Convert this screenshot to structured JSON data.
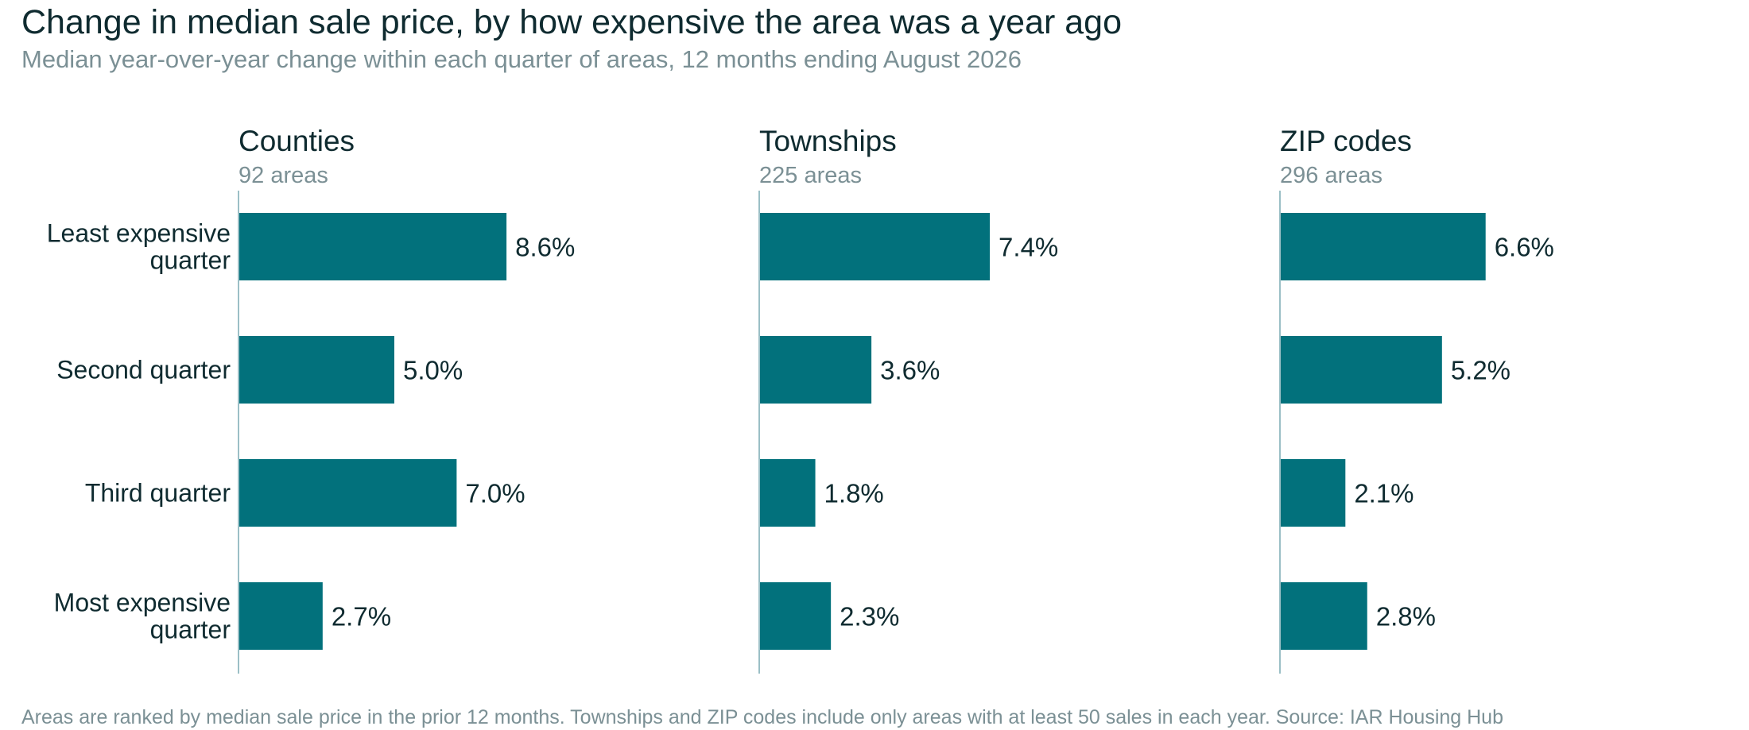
{
  "title": "Change in median sale price, by how expensive the area was a year ago",
  "subtitle": "Median year-over-year change within each quarter of areas, 12 months ending August 2026",
  "footnote": "Areas are ranked by median sale price in the prior 12 months. Townships and ZIP codes include only areas with at least 50 sales in each year. Source: IAR Housing Hub",
  "colors": {
    "bar": "#02717c",
    "axis": "#9bbfc6",
    "text": "#0f2b30",
    "muted": "#7b9095"
  },
  "chart_data": {
    "type": "bar",
    "orientation": "horizontal",
    "categories": [
      [
        "Least expensive",
        "quarter"
      ],
      [
        "Second quarter"
      ],
      [
        "Third quarter"
      ],
      [
        "Most expensive",
        "quarter"
      ]
    ],
    "value_suffix": "%",
    "value_decimals": 1,
    "xlim": [
      0,
      13.7
    ],
    "panels": [
      {
        "title": "Counties",
        "subtitle": "92 areas",
        "values": [
          8.6,
          5.0,
          7.0,
          2.7
        ]
      },
      {
        "title": "Townships",
        "subtitle": "225 areas",
        "values": [
          7.4,
          3.6,
          1.8,
          2.3
        ]
      },
      {
        "title": "ZIP codes",
        "subtitle": "296 areas",
        "values": [
          6.6,
          5.2,
          2.1,
          2.8
        ]
      }
    ]
  }
}
